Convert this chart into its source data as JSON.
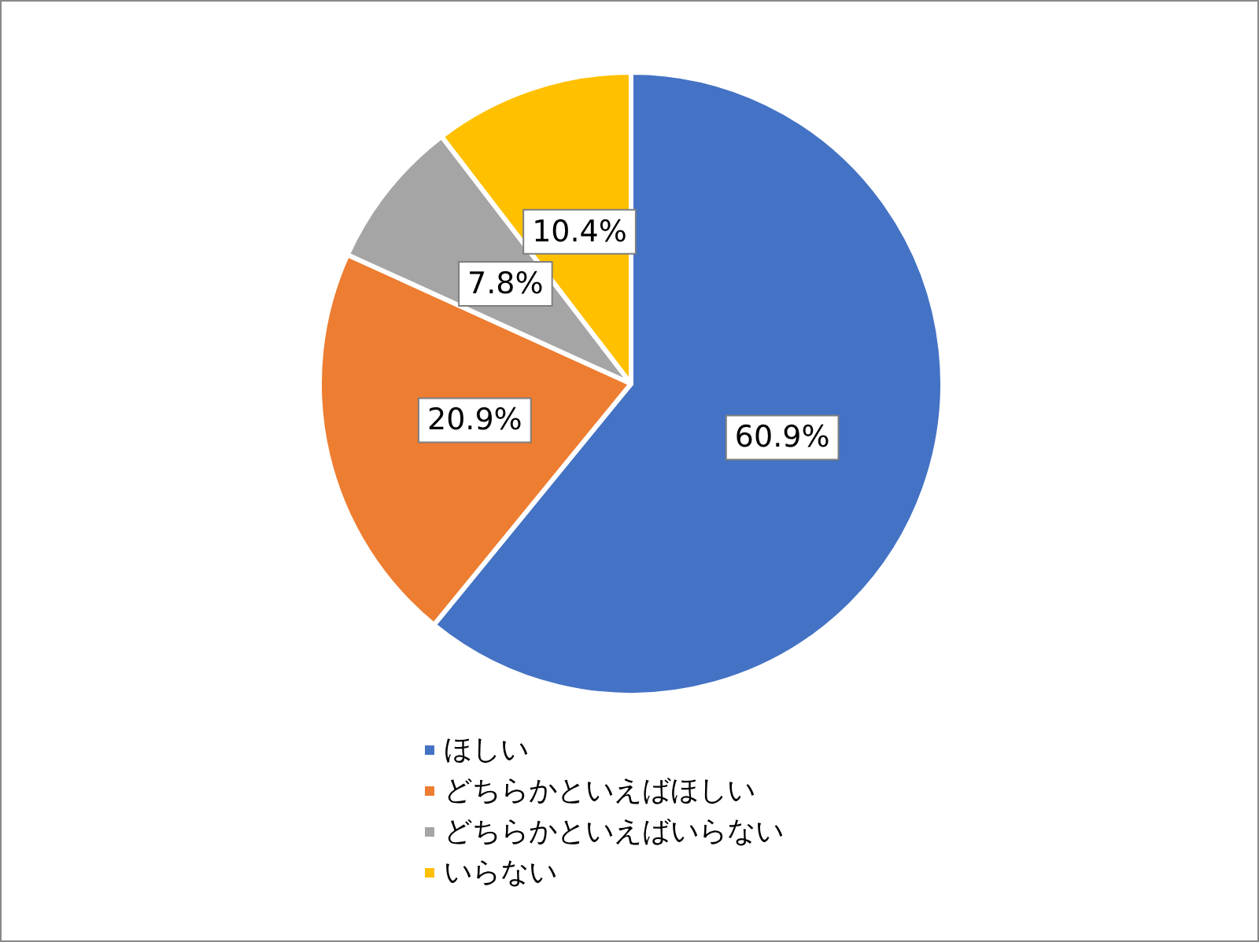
{
  "chart_data": {
    "type": "pie",
    "categories": [
      "ほしい",
      "どちらかといえばほしい",
      "どちらかといえばいらない",
      "いらない"
    ],
    "values": [
      60.9,
      20.9,
      7.8,
      10.4
    ],
    "colors": [
      "#4472c4",
      "#ed7d31",
      "#a5a5a5",
      "#ffc000"
    ],
    "value_labels": [
      "60.9%",
      "20.9%",
      "7.8%",
      "10.4%"
    ],
    "legend": "bottom"
  }
}
